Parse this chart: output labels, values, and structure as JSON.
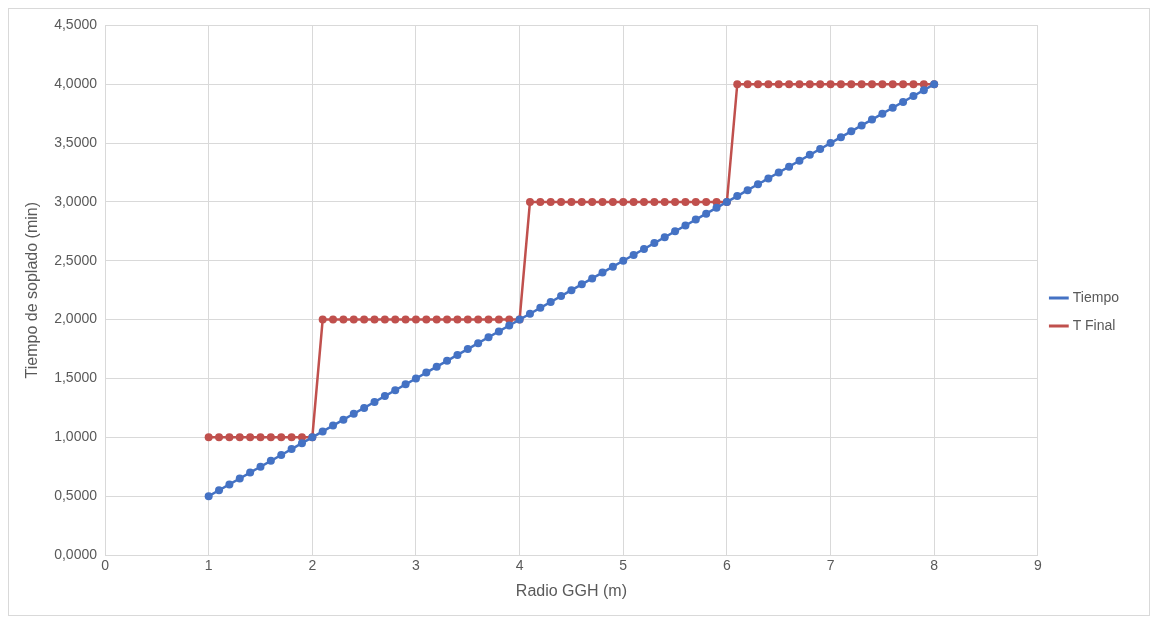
{
  "chart_data": {
    "type": "line",
    "xlabel": "Radio GGH (m)",
    "ylabel": "Tiempo de soplado (min)",
    "x": [
      1,
      1.1,
      1.2,
      1.3,
      1.4,
      1.5,
      1.6,
      1.7,
      1.8,
      1.9,
      2,
      2.1,
      2.2,
      2.3,
      2.4,
      2.5,
      2.6,
      2.7,
      2.8,
      2.9,
      3,
      3.1,
      3.2,
      3.3,
      3.4,
      3.5,
      3.6,
      3.7,
      3.8,
      3.9,
      4,
      4.1,
      4.2,
      4.3,
      4.4,
      4.5,
      4.6,
      4.7,
      4.8,
      4.9,
      5,
      5.1,
      5.2,
      5.3,
      5.4,
      5.5,
      5.6,
      5.7,
      5.8,
      5.9,
      6,
      6.1,
      6.2,
      6.3,
      6.4,
      6.5,
      6.6,
      6.7,
      6.8,
      6.9,
      7,
      7.1,
      7.2,
      7.3,
      7.4,
      7.5,
      7.6,
      7.7,
      7.8,
      7.9,
      8
    ],
    "series": [
      {
        "name": "Tiempo",
        "color": "#4472c4",
        "values": [
          0.5,
          0.55,
          0.6,
          0.65,
          0.7,
          0.75,
          0.8,
          0.85,
          0.9,
          0.95,
          1,
          1.05,
          1.1,
          1.15,
          1.2,
          1.25,
          1.3,
          1.35,
          1.4,
          1.45,
          1.5,
          1.55,
          1.6,
          1.65,
          1.7,
          1.75,
          1.8,
          1.85,
          1.9,
          1.95,
          2,
          2.05,
          2.1,
          2.15,
          2.2,
          2.25,
          2.3,
          2.35,
          2.4,
          2.45,
          2.5,
          2.55,
          2.6,
          2.65,
          2.7,
          2.75,
          2.8,
          2.85,
          2.9,
          2.95,
          3,
          3.05,
          3.1,
          3.15,
          3.2,
          3.25,
          3.3,
          3.35,
          3.4,
          3.45,
          3.5,
          3.55,
          3.6,
          3.65,
          3.7,
          3.75,
          3.8,
          3.85,
          3.9,
          3.95,
          4
        ]
      },
      {
        "name": "T Final",
        "color": "#c0504d",
        "values": [
          1,
          1,
          1,
          1,
          1,
          1,
          1,
          1,
          1,
          1,
          1,
          2,
          2,
          2,
          2,
          2,
          2,
          2,
          2,
          2,
          2,
          2,
          2,
          2,
          2,
          2,
          2,
          2,
          2,
          2,
          2,
          3,
          3,
          3,
          3,
          3,
          3,
          3,
          3,
          3,
          3,
          3,
          3,
          3,
          3,
          3,
          3,
          3,
          3,
          3,
          3,
          4,
          4,
          4,
          4,
          4,
          4,
          4,
          4,
          4,
          4,
          4,
          4,
          4,
          4,
          4,
          4,
          4,
          4,
          4,
          4
        ]
      }
    ],
    "xlim": [
      0,
      9
    ],
    "xticks": [
      0,
      1,
      2,
      3,
      4,
      5,
      6,
      7,
      8,
      9
    ],
    "ylim": [
      0,
      4.5
    ],
    "yticks": [
      {
        "value": 0,
        "label": "0,0000"
      },
      {
        "value": 0.5,
        "label": "0,5000"
      },
      {
        "value": 1,
        "label": "1,0000"
      },
      {
        "value": 1.5,
        "label": "1,5000"
      },
      {
        "value": 2,
        "label": "2,0000"
      },
      {
        "value": 2.5,
        "label": "2,5000"
      },
      {
        "value": 3,
        "label": "3,0000"
      },
      {
        "value": 3.5,
        "label": "3,5000"
      },
      {
        "value": 4,
        "label": "4,0000"
      },
      {
        "value": 4.5,
        "label": "4,5000"
      }
    ],
    "grid": true,
    "legend": "right",
    "marker": "circle",
    "line_style": "solid"
  }
}
